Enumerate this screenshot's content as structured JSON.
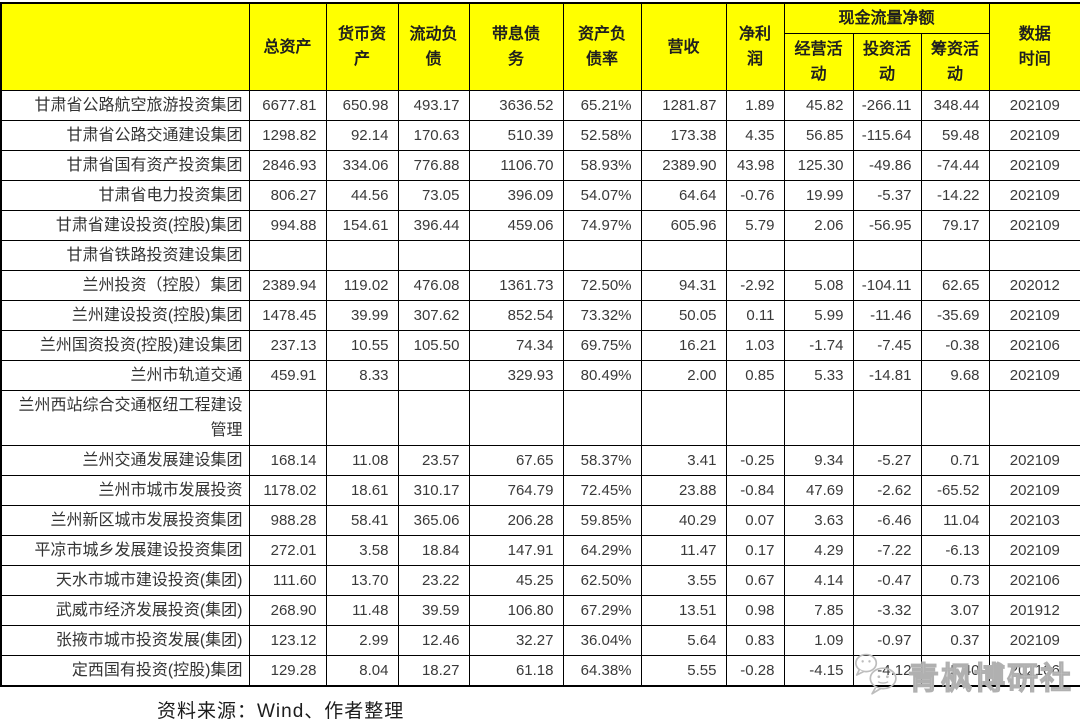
{
  "header": {
    "name": "",
    "total_assets": "总资产",
    "monetary_funds": "货币资产",
    "current_liabilities": "流动负债",
    "interest_bearing_debt": "带息债务",
    "debt_to_asset_ratio": "资产负债率",
    "revenue": "营收",
    "net_profit": "净利润",
    "cash_flow_group": "现金流量净额",
    "operating": "经营活动",
    "investing": "投资活动",
    "financing": "筹资活动",
    "data_time": "数据时间"
  },
  "table": {
    "rows": [
      {
        "name": "甘肃省公路航空旅游投资集团",
        "values": [
          "6677.81",
          "650.98",
          "493.17",
          "3636.52",
          "65.21%",
          "1281.87",
          "1.89",
          "45.82",
          "-266.11",
          "348.44",
          "202109"
        ]
      },
      {
        "name": "甘肃省公路交通建设集团",
        "values": [
          "1298.82",
          "92.14",
          "170.63",
          "510.39",
          "52.58%",
          "173.38",
          "4.35",
          "56.85",
          "-115.64",
          "59.48",
          "202109"
        ]
      },
      {
        "name": "甘肃省国有资产投资集团",
        "values": [
          "2846.93",
          "334.06",
          "776.88",
          "1106.70",
          "58.93%",
          "2389.90",
          "43.98",
          "125.30",
          "-49.86",
          "-74.44",
          "202109"
        ]
      },
      {
        "name": "甘肃省电力投资集团",
        "values": [
          "806.27",
          "44.56",
          "73.05",
          "396.09",
          "54.07%",
          "64.64",
          "-0.76",
          "19.99",
          "-5.37",
          "-14.22",
          "202109"
        ]
      },
      {
        "name": "甘肃省建设投资(控股)集团",
        "values": [
          "994.88",
          "154.61",
          "396.44",
          "459.06",
          "74.97%",
          "605.96",
          "5.79",
          "2.06",
          "-56.95",
          "79.17",
          "202109"
        ]
      },
      {
        "name": "甘肃省铁路投资建设集团",
        "values": [
          "",
          "",
          "",
          "",
          "",
          "",
          "",
          "",
          "",
          "",
          ""
        ]
      },
      {
        "name": "兰州投资（控股）集团",
        "values": [
          "2389.94",
          "119.02",
          "476.08",
          "1361.73",
          "72.50%",
          "94.31",
          "-2.92",
          "5.08",
          "-104.11",
          "62.65",
          "202012"
        ]
      },
      {
        "name": "兰州建设投资(控股)集团",
        "values": [
          "1478.45",
          "39.99",
          "307.62",
          "852.54",
          "73.32%",
          "50.05",
          "0.11",
          "5.99",
          "-11.46",
          "-35.69",
          "202109"
        ]
      },
      {
        "name": "兰州国资投资(控股)建设集团",
        "values": [
          "237.13",
          "10.55",
          "105.50",
          "74.34",
          "69.75%",
          "16.21",
          "1.03",
          "-1.74",
          "-7.45",
          "-0.38",
          "202106"
        ]
      },
      {
        "name": "兰州市轨道交通",
        "values": [
          "459.91",
          "8.33",
          "",
          "329.93",
          "80.49%",
          "2.00",
          "0.85",
          "5.33",
          "-14.81",
          "9.68",
          "202109"
        ]
      },
      {
        "name": "兰州西站综合交通枢纽工程建设管理",
        "values": [
          "",
          "",
          "",
          "",
          "",
          "",
          "",
          "",
          "",
          "",
          ""
        ]
      },
      {
        "name": "兰州交通发展建设集团",
        "values": [
          "168.14",
          "11.08",
          "23.57",
          "67.65",
          "58.37%",
          "3.41",
          "-0.25",
          "9.34",
          "-5.27",
          "0.71",
          "202109"
        ]
      },
      {
        "name": "兰州市城市发展投资",
        "values": [
          "1178.02",
          "18.61",
          "310.17",
          "764.79",
          "72.45%",
          "23.88",
          "-0.84",
          "47.69",
          "-2.62",
          "-65.52",
          "202109"
        ]
      },
      {
        "name": "兰州新区城市发展投资集团",
        "values": [
          "988.28",
          "58.41",
          "365.06",
          "206.28",
          "59.85%",
          "40.29",
          "0.07",
          "3.63",
          "-6.46",
          "11.04",
          "202103"
        ]
      },
      {
        "name": "平凉市城乡发展建设投资集团",
        "values": [
          "272.01",
          "3.58",
          "18.84",
          "147.91",
          "64.29%",
          "11.47",
          "0.17",
          "4.29",
          "-7.22",
          "-6.13",
          "202109"
        ]
      },
      {
        "name": "天水市城市建设投资(集团)",
        "values": [
          "111.60",
          "13.70",
          "23.22",
          "45.25",
          "62.50%",
          "3.55",
          "0.67",
          "4.14",
          "-0.47",
          "0.73",
          "202106"
        ]
      },
      {
        "name": "武威市经济发展投资(集团)",
        "values": [
          "268.90",
          "11.48",
          "39.59",
          "106.80",
          "67.29%",
          "13.51",
          "0.98",
          "7.85",
          "-3.32",
          "3.07",
          "201912"
        ]
      },
      {
        "name": "张掖市城市投资发展(集团)",
        "values": [
          "123.12",
          "2.99",
          "12.46",
          "32.27",
          "36.04%",
          "5.64",
          "0.83",
          "1.09",
          "-0.97",
          "0.37",
          "202109"
        ]
      },
      {
        "name": "定西国有投资(控股)集团",
        "values": [
          "129.28",
          "8.04",
          "18.27",
          "61.18",
          "64.38%",
          "5.55",
          "-0.28",
          "-4.15",
          "-4.12",
          "5.40",
          "202106"
        ]
      }
    ]
  },
  "footer": {
    "source": "资料来源：Wind、作者整理"
  },
  "watermark": {
    "text": "青枫博研社",
    "icon": "wechat-icon"
  },
  "colors": {
    "header_bg": "#ffff00",
    "border": "#000000",
    "body_text": "#3a3a3a",
    "watermark_gray": "#c9c9c9"
  }
}
